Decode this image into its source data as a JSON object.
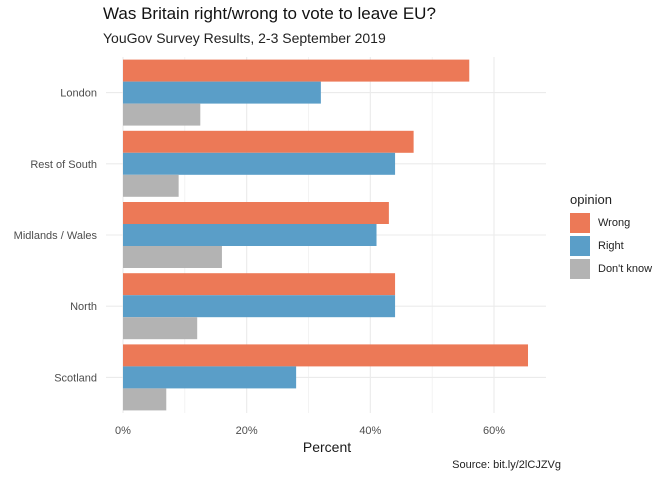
{
  "title": "Was Britain right/wrong to vote to leave EU?",
  "subtitle": "YouGov Survey Results, 2-3 September 2019",
  "caption": "Source: bit.ly/2lCJZVg",
  "colors": {
    "Wrong": "#ec7957",
    "Right": "#5a9ec8",
    "Dont_know": "#b3b3b3",
    "grid": "#ebebeb"
  },
  "chart_data": {
    "type": "bar",
    "orientation": "horizontal",
    "categories": [
      "London",
      "Rest of South",
      "Midlands / Wales",
      "North",
      "Scotland"
    ],
    "series": [
      {
        "name": "Wrong",
        "values": [
          56,
          47,
          43,
          44,
          65.5
        ]
      },
      {
        "name": "Right",
        "values": [
          32,
          44,
          41,
          44,
          28
        ]
      },
      {
        "name": "Don't know",
        "values": [
          12.5,
          9,
          16,
          12,
          7
        ]
      }
    ],
    "xlabel": "Percent",
    "ylabel": "",
    "xlim": [
      0,
      68
    ],
    "x_ticks": [
      0,
      20,
      40,
      60
    ],
    "x_tick_labels": [
      "0%",
      "20%",
      "40%",
      "60%"
    ],
    "legend_title": "opinion",
    "legend_position": "right",
    "grid": true
  }
}
